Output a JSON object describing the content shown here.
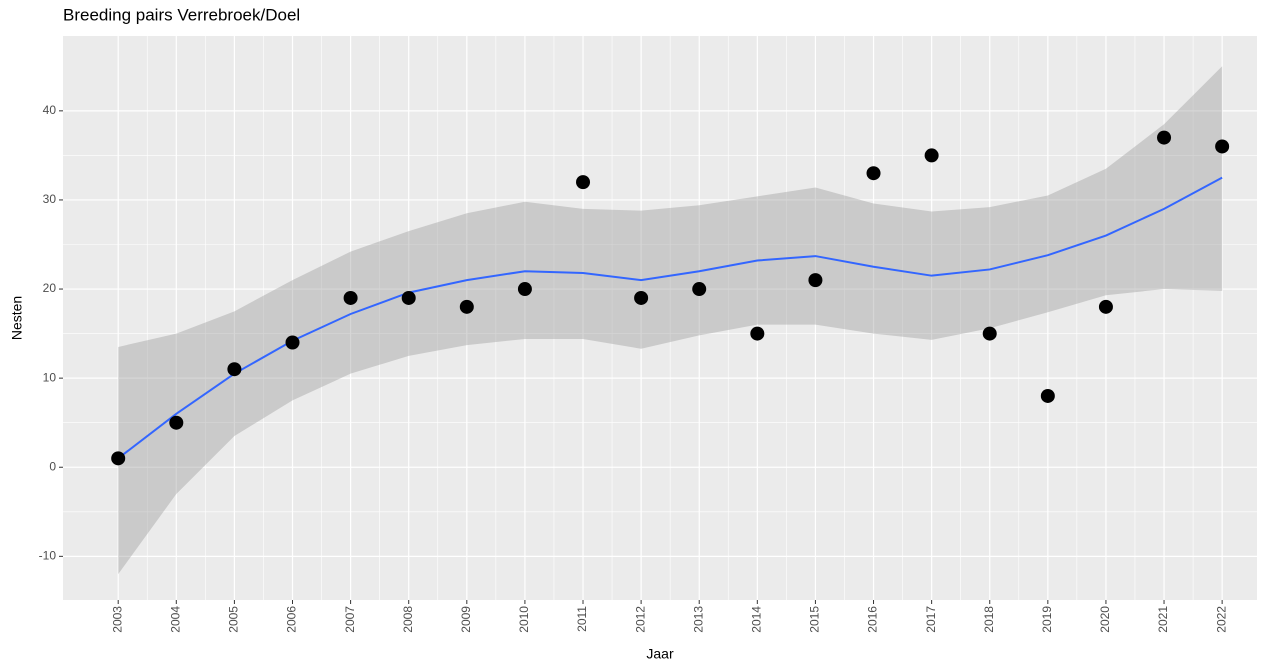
{
  "chart_data": {
    "type": "scatter",
    "title": "Breeding pairs Verrebroek/Doel",
    "x_label": "Jaar",
    "y_label": "Nesten",
    "x": [
      2003,
      2004,
      2005,
      2006,
      2007,
      2008,
      2009,
      2010,
      2011,
      2012,
      2013,
      2014,
      2015,
      2016,
      2017,
      2018,
      2019,
      2020,
      2021,
      2022
    ],
    "points": {
      "color": "#000000",
      "values": [
        1,
        5,
        11,
        14,
        19,
        19,
        18,
        20,
        32,
        19,
        20,
        15,
        21,
        33,
        35,
        15,
        8,
        18,
        37,
        36
      ]
    },
    "smooth": {
      "color": "#3366ff",
      "band_color": "#999999",
      "values": [
        1,
        6,
        10.5,
        14.2,
        17.2,
        19.6,
        21,
        22,
        21.8,
        21,
        22,
        23.2,
        23.7,
        22.5,
        21.5,
        22.2,
        23.8,
        26,
        29,
        32.5
      ],
      "upper": [
        13.5,
        15,
        17.5,
        21,
        24.2,
        26.5,
        28.5,
        29.8,
        29,
        28.8,
        29.4,
        30.4,
        31.4,
        29.6,
        28.7,
        29.2,
        30.5,
        33.5,
        38.5,
        45
      ],
      "lower": [
        -12,
        -3,
        3.5,
        7.5,
        10.5,
        12.5,
        13.7,
        14.4,
        14.4,
        13.3,
        14.8,
        16,
        16,
        15,
        14.3,
        15.6,
        17.4,
        19.3,
        20,
        19.8
      ]
    },
    "xlim": [
      2002.05,
      2022.6
    ],
    "ylim": [
      -14.9,
      48.4
    ],
    "xticks": [
      2003,
      2004,
      2005,
      2006,
      2007,
      2008,
      2009,
      2010,
      2011,
      2012,
      2013,
      2014,
      2015,
      2016,
      2017,
      2018,
      2019,
      2020,
      2021,
      2022
    ],
    "yticks": [
      -10,
      0,
      10,
      20,
      30,
      40
    ],
    "grid": true,
    "panel_color": "#ebebeb"
  }
}
